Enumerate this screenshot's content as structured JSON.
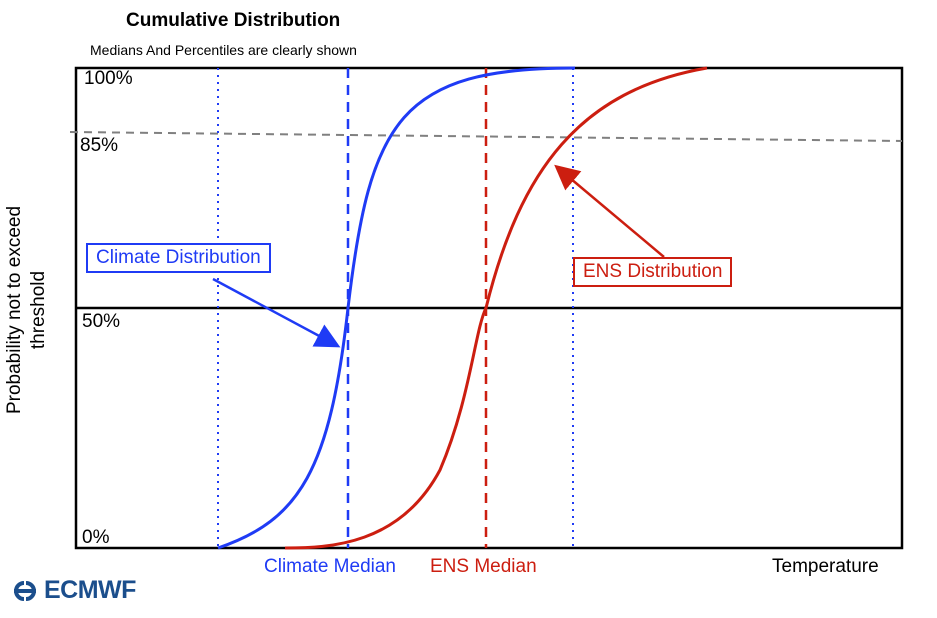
{
  "header": {
    "title": "Cumulative Distribution",
    "subtitle": "Medians And Percentiles are clearly shown"
  },
  "axes": {
    "ylabel": "Probability not to exceed threshold",
    "xlabel": "Temperature",
    "y_ticks": [
      "100%",
      "85%",
      "50%",
      "0%"
    ]
  },
  "annotations": {
    "climate_distribution": "Climate Distribution",
    "ens_distribution": "ENS Distribution",
    "climate_median": "Climate Median",
    "ens_median": "ENS Median"
  },
  "logo": {
    "text": "ECMWF",
    "icon": "ecmwf-logo-icon"
  },
  "colors": {
    "climate": "#1f3bf5",
    "ens": "#cc1e10",
    "threshold_line": "#808080",
    "logo": "#1b4e8c"
  },
  "chart_data": {
    "type": "line",
    "title": "Cumulative Distribution",
    "subtitle": "Medians And Percentiles are clearly shown",
    "xlabel": "Temperature",
    "ylabel": "Probability not to exceed threshold",
    "ylim": [
      0,
      100
    ],
    "y_ticks": [
      0,
      50,
      85,
      100
    ],
    "series": [
      {
        "name": "Climate Distribution",
        "median": "Climate Median"
      },
      {
        "name": "ENS Distribution",
        "median": "ENS Median"
      }
    ]
  }
}
